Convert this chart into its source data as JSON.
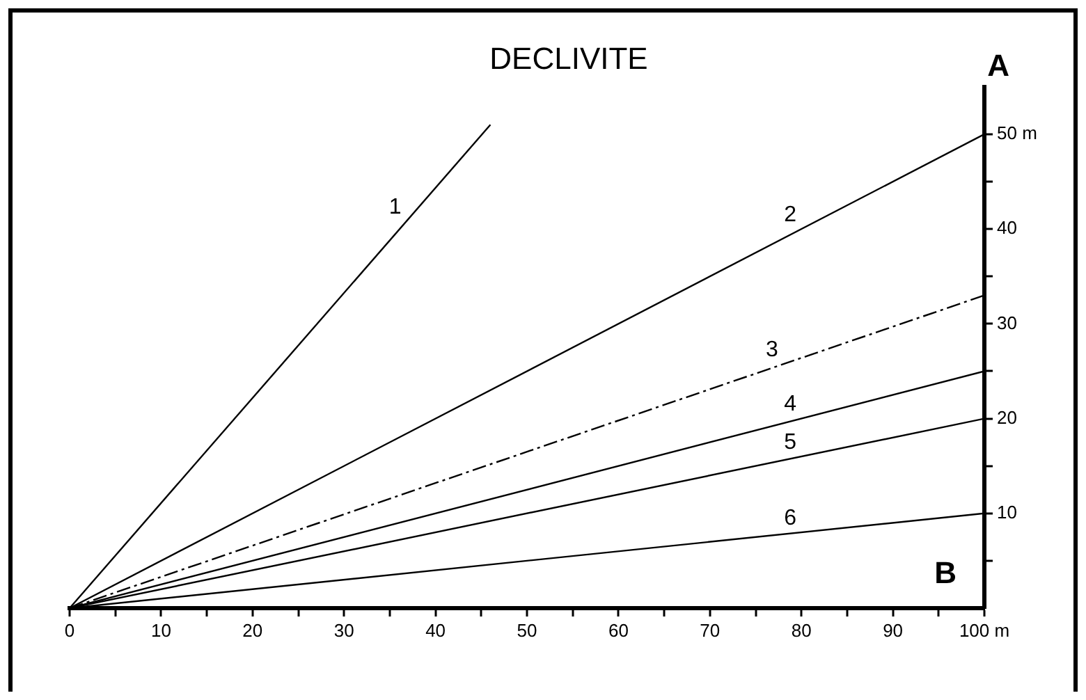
{
  "chart_data": {
    "type": "line",
    "title": "DECLIVITE",
    "xlim": [
      0,
      100
    ],
    "ylim": [
      0,
      55
    ],
    "xticks": [
      0,
      {
        "value": 5,
        "label": null
      },
      10,
      {
        "value": 15,
        "label": null
      },
      20,
      {
        "value": 25,
        "label": null
      },
      30,
      {
        "value": 35,
        "label": null
      },
      40,
      {
        "value": 45,
        "label": null
      },
      50,
      {
        "value": 55,
        "label": null
      },
      60,
      {
        "value": 65,
        "label": null
      },
      70,
      {
        "value": 75,
        "label": null
      },
      80,
      {
        "value": 85,
        "label": null
      },
      90,
      {
        "value": 95,
        "label": null
      },
      {
        "value": 100,
        "label": "100 m"
      }
    ],
    "yticks": [
      {
        "value": 5,
        "label": null
      },
      10,
      {
        "value": 15,
        "label": null
      },
      20,
      {
        "value": 25,
        "label": null
      },
      30,
      {
        "value": 35,
        "label": null
      },
      40,
      {
        "value": 45,
        "label": null
      },
      {
        "value": 50,
        "label": "50 m"
      }
    ],
    "series": [
      {
        "name": "1",
        "color": "#000000",
        "x": [
          0,
          46
        ],
        "values": [
          0,
          51
        ]
      },
      {
        "name": "2",
        "color": "#000000",
        "x": [
          0,
          100
        ],
        "values": [
          0,
          50
        ]
      },
      {
        "name": "3",
        "color": "#000000",
        "x": [
          0,
          100
        ],
        "values": [
          0,
          33
        ],
        "line_style": "dashed"
      },
      {
        "name": "4",
        "color": "#000000",
        "x": [
          0,
          100
        ],
        "values": [
          0,
          25
        ]
      },
      {
        "name": "5",
        "color": "#000000",
        "x": [
          0,
          100
        ],
        "values": [
          0,
          20
        ]
      },
      {
        "name": "6",
        "color": "#000000",
        "x": [
          0,
          100
        ],
        "values": [
          0,
          10
        ]
      }
    ],
    "annotations": [
      "A",
      "B"
    ],
    "grid": false,
    "legend": false,
    "marker": "none",
    "line_style": "solid"
  }
}
